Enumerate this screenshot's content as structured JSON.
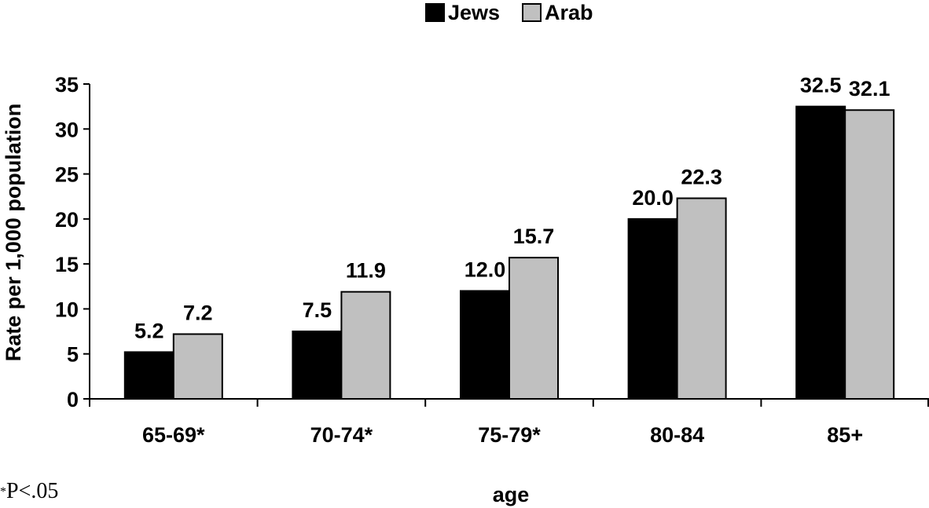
{
  "chart_data": {
    "type": "bar",
    "title": "",
    "xlabel": "age",
    "ylabel": "Rate per 1,000 population",
    "categories": [
      "65-69*",
      "70-74*",
      "75-79*",
      "80-84",
      "85+"
    ],
    "series": [
      {
        "name": "Jews",
        "color": "#000000",
        "values": [
          5.2,
          7.5,
          12.0,
          20.0,
          32.5
        ],
        "labels": [
          "5.2",
          "7.5",
          "12.0",
          "20.0",
          "32.5"
        ]
      },
      {
        "name": "Arab",
        "color": "#c0c0c0",
        "values": [
          7.2,
          11.9,
          15.7,
          22.3,
          32.1
        ],
        "labels": [
          "7.2",
          "11.9",
          "15.7",
          "22.3",
          "32.1"
        ]
      }
    ],
    "ylim": [
      0,
      35
    ],
    "yticks": [
      0,
      5,
      10,
      15,
      20,
      25,
      30,
      35
    ],
    "grid": false,
    "legend_position": "top-center"
  },
  "footnote": {
    "star": "*",
    "text": "P<.05"
  }
}
